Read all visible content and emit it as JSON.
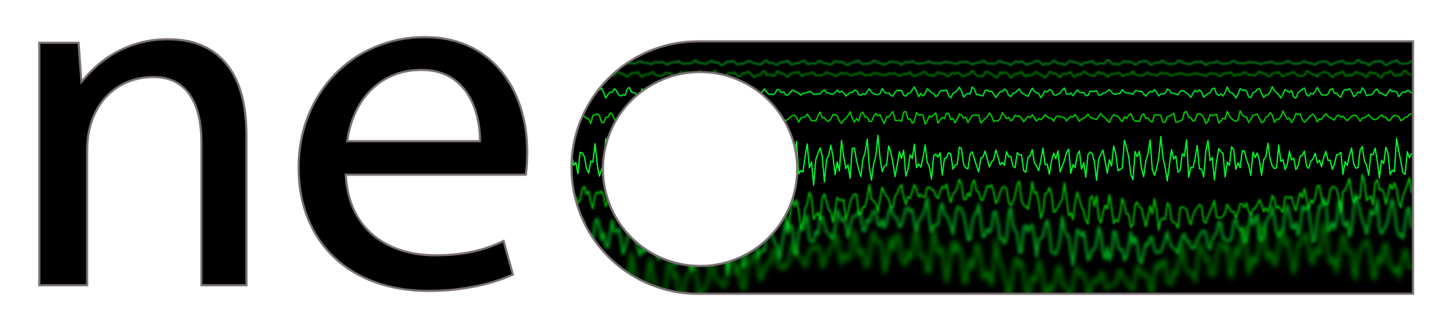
{
  "logo": {
    "wordmark": "neo",
    "letter_color": "#000000",
    "outline_color": "#7a7272",
    "background_color": "#ffffff",
    "trace_color": "#00e000",
    "trace_glow_color": "#00ff30",
    "panel_color": "#000000"
  }
}
